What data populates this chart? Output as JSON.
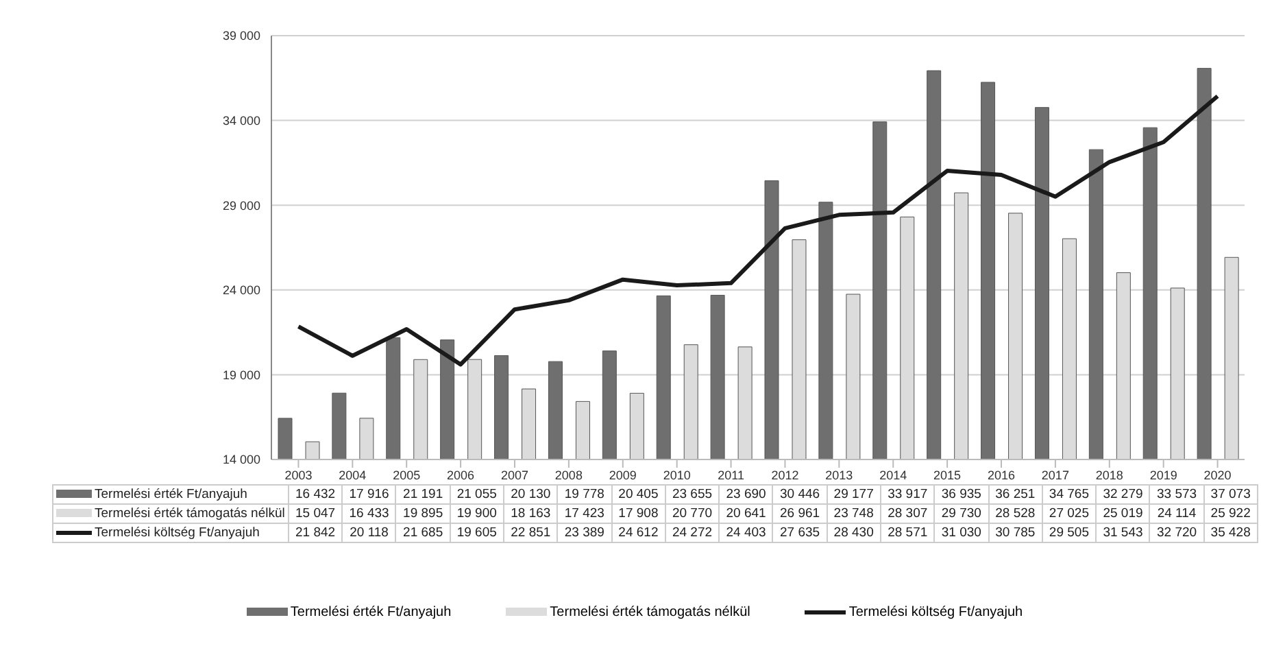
{
  "chart_data": {
    "type": "bar",
    "categories": [
      "2003",
      "2004",
      "2005",
      "2006",
      "2007",
      "2008",
      "2009",
      "2010",
      "2011",
      "2012",
      "2013",
      "2014",
      "2015",
      "2016",
      "2017",
      "2018",
      "2019",
      "2020"
    ],
    "series": [
      {
        "name": "Termelési érték Ft/anyajuh",
        "color": "#6f6f6f",
        "values": [
          16432,
          17916,
          21191,
          21055,
          20130,
          19778,
          20405,
          23655,
          23690,
          30446,
          29177,
          33917,
          36935,
          36251,
          34765,
          32279,
          33573,
          37073
        ]
      },
      {
        "name": "Termelési érték támogatás nélkül",
        "color": "#dcdcdc",
        "values": [
          15047,
          16433,
          19895,
          19900,
          18163,
          17423,
          17908,
          20770,
          20641,
          26961,
          23748,
          28307,
          29730,
          28528,
          27025,
          25019,
          24114,
          25922
        ]
      },
      {
        "name": "Termelési költség Ft/anyajuh",
        "type": "line",
        "color": "#1a1a1a",
        "values": [
          21842,
          20118,
          21685,
          19605,
          22851,
          23389,
          24612,
          24272,
          24403,
          27635,
          28430,
          28571,
          31030,
          30785,
          29505,
          31543,
          32720,
          35428
        ]
      }
    ],
    "ylim": [
      14000,
      39000
    ],
    "yticks": [
      {
        "value": 14000,
        "label": "14 000"
      },
      {
        "value": 19000,
        "label": "19 000"
      },
      {
        "value": 24000,
        "label": "24 000"
      },
      {
        "value": 29000,
        "label": "29 000"
      },
      {
        "value": 34000,
        "label": "34 000"
      },
      {
        "value": 39000,
        "label": "39 000"
      }
    ],
    "grid": "y",
    "legend": "bottom",
    "data_labels": true
  }
}
